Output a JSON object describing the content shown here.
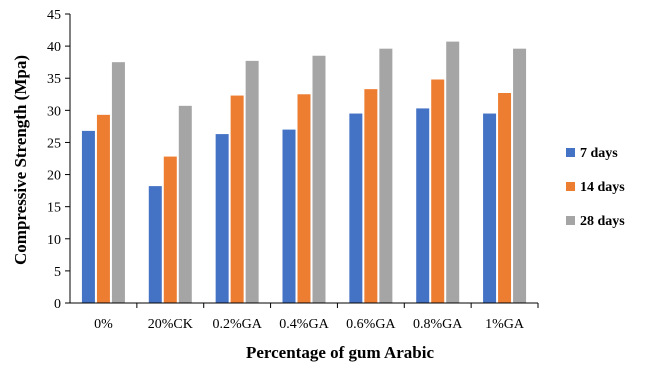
{
  "chart_data": {
    "type": "bar",
    "title": "",
    "xlabel": "Percentage of gum Arabic",
    "ylabel": "Compressive Strength (Mpa)",
    "categories": [
      "0%",
      "20%CK",
      "0.2%GA",
      "0.4%GA",
      "0.6%GA",
      "0.8%GA",
      "1%GA"
    ],
    "series": [
      {
        "name": "7 days",
        "color": "#4472C4",
        "values": [
          26.8,
          18.2,
          26.3,
          27.0,
          29.5,
          30.3,
          29.5
        ]
      },
      {
        "name": "14 days",
        "color": "#ED7D31",
        "values": [
          29.3,
          22.8,
          32.3,
          32.5,
          33.3,
          34.8,
          32.7
        ]
      },
      {
        "name": "28 days",
        "color": "#A5A5A5",
        "values": [
          37.5,
          30.7,
          37.7,
          38.5,
          39.6,
          40.7,
          39.6
        ]
      }
    ],
    "ylim": [
      0,
      45
    ],
    "yticks": [
      0,
      5,
      10,
      15,
      20,
      25,
      30,
      35,
      40,
      45
    ],
    "grid": false,
    "legend_position": "right"
  }
}
